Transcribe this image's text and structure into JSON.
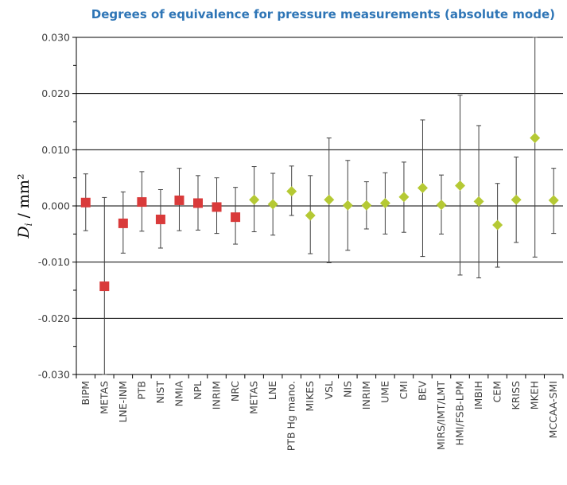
{
  "chart_data": {
    "type": "scatter",
    "title": "Degrees of equivalence for pressure measurements (absolute mode)",
    "ylabel": {
      "var": "D",
      "sub": "i",
      "unit": " / mm²"
    },
    "ylim": [
      -0.03,
      0.03
    ],
    "yticks": [
      "0.030",
      "0.020",
      "0.010",
      "0.000",
      "-0.010",
      "-0.020",
      "-0.030"
    ],
    "ytick_values": [
      0.03,
      0.02,
      0.01,
      0.0,
      -0.01,
      -0.02,
      -0.03
    ],
    "grid": true,
    "categories": [
      "BIPM",
      "METAS",
      "LNE-INM",
      "PTB",
      "NIST",
      "NMIA",
      "NPL",
      "INRIM",
      "NRC",
      "METAS",
      "LNE",
      "PTB Hg mano.",
      "MIKES",
      "VSL",
      "NIS",
      "INRIM",
      "UME",
      "CMI",
      "BEV",
      "MIRS/IMT/LMT",
      "HMI/FSB-LPM",
      "IMBIH",
      "CEM",
      "KRISS",
      "MKEH",
      "MCCAA-SMI"
    ],
    "series": [
      {
        "marker": "square",
        "color": "#d93a3a",
        "values": [
          0.0006,
          -0.0143,
          -0.0031,
          0.0007,
          -0.0024,
          0.001,
          0.0005,
          -0.0002,
          -0.002
        ],
        "err_low": [
          -0.0044,
          -0.03,
          -0.0084,
          -0.0045,
          -0.0075,
          -0.0044,
          -0.0043,
          -0.0049,
          -0.0068
        ],
        "err_high": [
          0.0057,
          0.0015,
          0.0025,
          0.0061,
          0.0029,
          0.0067,
          0.0054,
          0.005,
          0.0033
        ]
      },
      {
        "marker": "diamond",
        "color": "#b5c934",
        "values": [
          0.0011,
          0.0003,
          0.0026,
          -0.0017,
          0.0011,
          0.0001,
          0.0001,
          0.0005,
          0.0016,
          0.0032,
          0.0002,
          0.0036,
          0.0008,
          -0.0034,
          0.0011,
          0.0121,
          0.001
        ],
        "err_low": [
          -0.0046,
          -0.0052,
          -0.0017,
          -0.0085,
          -0.0101,
          -0.0079,
          -0.0041,
          -0.005,
          -0.0047,
          -0.009,
          -0.005,
          -0.0123,
          -0.0128,
          -0.0109,
          -0.0065,
          -0.0091,
          -0.0049
        ],
        "err_high": [
          0.007,
          0.0058,
          0.0071,
          0.0054,
          0.0121,
          0.0081,
          0.0043,
          0.0059,
          0.0078,
          0.0153,
          0.0055,
          0.0197,
          0.0143,
          0.004,
          0.0087,
          0.03,
          0.0067
        ]
      }
    ]
  }
}
